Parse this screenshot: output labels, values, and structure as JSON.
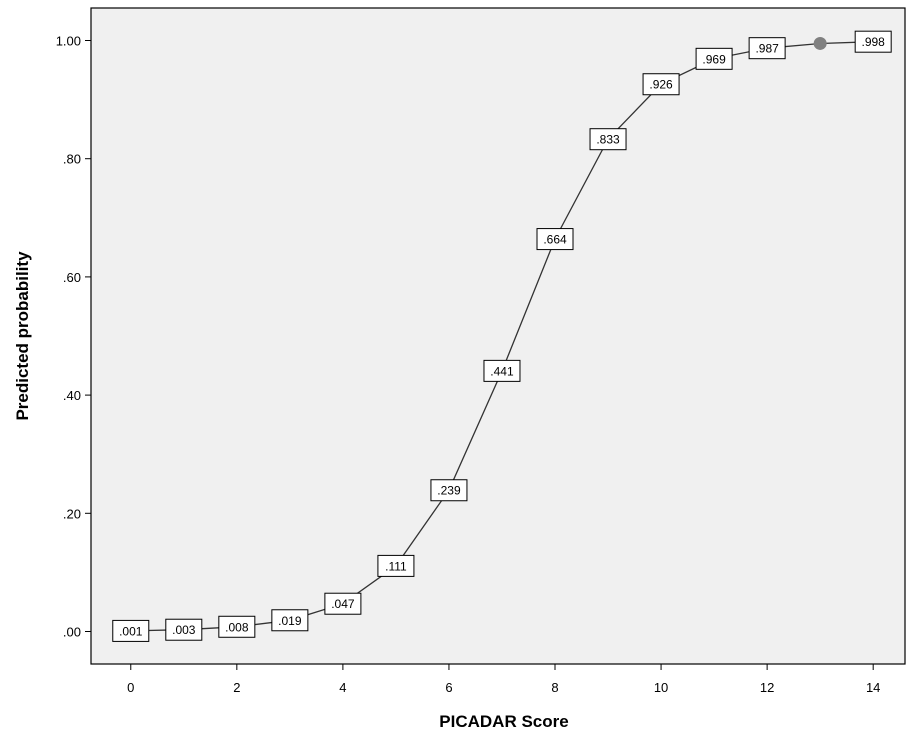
{
  "chart_data": {
    "type": "line",
    "xlabel": "PICADAR Score",
    "ylabel": "Predicted probability",
    "xlim": [
      -0.75,
      14.6
    ],
    "ylim": [
      -0.055,
      1.055
    ],
    "x_ticks": [
      0,
      2,
      4,
      6,
      8,
      10,
      12,
      14
    ],
    "x_tick_labels": [
      "0",
      "2",
      "4",
      "6",
      "8",
      "10",
      "12",
      "14"
    ],
    "y_ticks": [
      0,
      0.2,
      0.4,
      0.6,
      0.8,
      1.0
    ],
    "y_tick_labels": [
      ".00",
      ".20",
      ".40",
      ".60",
      ".80",
      "1.00"
    ],
    "grid": false,
    "plot_background": "#f0f0f0",
    "line_color": "#333333",
    "marker_color": "#808080",
    "points": [
      {
        "x": 0,
        "y": 0.001,
        "label": ".001"
      },
      {
        "x": 1,
        "y": 0.003,
        "label": ".003"
      },
      {
        "x": 2,
        "y": 0.008,
        "label": ".008"
      },
      {
        "x": 3,
        "y": 0.019,
        "label": ".019"
      },
      {
        "x": 4,
        "y": 0.047,
        "label": ".047"
      },
      {
        "x": 5,
        "y": 0.111,
        "label": ".111"
      },
      {
        "x": 6,
        "y": 0.239,
        "label": ".239"
      },
      {
        "x": 7,
        "y": 0.441,
        "label": ".441"
      },
      {
        "x": 8,
        "y": 0.664,
        "label": ".664"
      },
      {
        "x": 9,
        "y": 0.833,
        "label": ".833"
      },
      {
        "x": 10,
        "y": 0.926,
        "label": ".926"
      },
      {
        "x": 11,
        "y": 0.969,
        "label": ".969"
      },
      {
        "x": 12,
        "y": 0.987,
        "label": ".987"
      },
      {
        "x": 13,
        "y": 0.995,
        "label": ""
      },
      {
        "x": 14,
        "y": 0.998,
        "label": ".998"
      }
    ]
  }
}
